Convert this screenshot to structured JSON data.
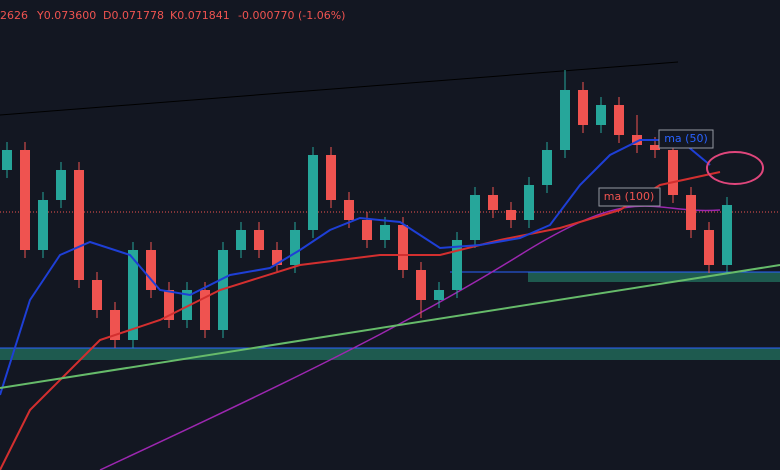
{
  "chart_data": {
    "type": "candlestick",
    "header": [
      "2626",
      "Y0.073600",
      "D0.071778",
      "K0.071841",
      "-0.000770 (-1.06%)"
    ],
    "annotations": [
      "ma (50)",
      "ma (100)"
    ],
    "ylim": [
      0.0641,
      0.0782
    ],
    "up_color": "#26a69a",
    "down_color": "#ef5350",
    "open": [
      0.0731,
      0.0737,
      0.0707,
      0.0722,
      0.0731,
      0.0698,
      0.0689,
      0.068,
      0.0707,
      0.0695,
      0.0686,
      0.0695,
      0.0683,
      0.0707,
      0.0713,
      0.0707,
      0.07025,
      0.0713,
      0.07355,
      0.0722,
      0.0716,
      0.071,
      0.07145,
      0.0701,
      0.0692,
      0.0695,
      0.071,
      0.07235,
      0.0719,
      0.0716,
      0.07265,
      0.0737,
      0.0755,
      0.07445,
      0.07505,
      0.07415,
      0.07385,
      0.0737,
      0.07235,
      0.0713,
      0.07025
    ],
    "high": [
      0.07394,
      0.07394,
      0.07244,
      0.07334,
      0.07334,
      0.07004,
      0.06914,
      0.07094,
      0.07094,
      0.06974,
      0.06974,
      0.06974,
      0.07094,
      0.07154,
      0.07154,
      0.07094,
      0.07154,
      0.07379,
      0.07379,
      0.07244,
      0.07184,
      0.07169,
      0.07169,
      0.07034,
      0.06974,
      0.07124,
      0.07259,
      0.07259,
      0.07214,
      0.07289,
      0.07394,
      0.0761,
      0.07574,
      0.07529,
      0.07529,
      0.07475,
      0.07409,
      0.07394,
      0.07259,
      0.07154,
      0.07229
    ],
    "low": [
      0.07286,
      0.07046,
      0.07046,
      0.07196,
      0.06956,
      0.06866,
      0.06776,
      0.06776,
      0.06926,
      0.06836,
      0.06836,
      0.06806,
      0.06806,
      0.07046,
      0.07046,
      0.07001,
      0.07001,
      0.07106,
      0.07196,
      0.07136,
      0.07076,
      0.07076,
      0.06986,
      0.06866,
      0.06896,
      0.06926,
      0.07076,
      0.07166,
      0.07136,
      0.07136,
      0.07241,
      0.07346,
      0.07421,
      0.07421,
      0.07391,
      0.07361,
      0.07346,
      0.07211,
      0.07106,
      0.07001,
      0.07001
    ],
    "close": [
      0.0737,
      0.0707,
      0.0722,
      0.0731,
      0.0698,
      0.0689,
      0.068,
      0.0707,
      0.0695,
      0.0686,
      0.0695,
      0.0683,
      0.0707,
      0.0713,
      0.0707,
      0.07025,
      0.0713,
      0.07355,
      0.0722,
      0.0716,
      0.071,
      0.07145,
      0.0701,
      0.0692,
      0.0695,
      0.071,
      0.07235,
      0.0719,
      0.0716,
      0.07265,
      0.0737,
      0.0755,
      0.07445,
      0.07505,
      0.07415,
      0.07385,
      0.0737,
      0.07235,
      0.0713,
      0.07025,
      0.07205
    ]
  }
}
